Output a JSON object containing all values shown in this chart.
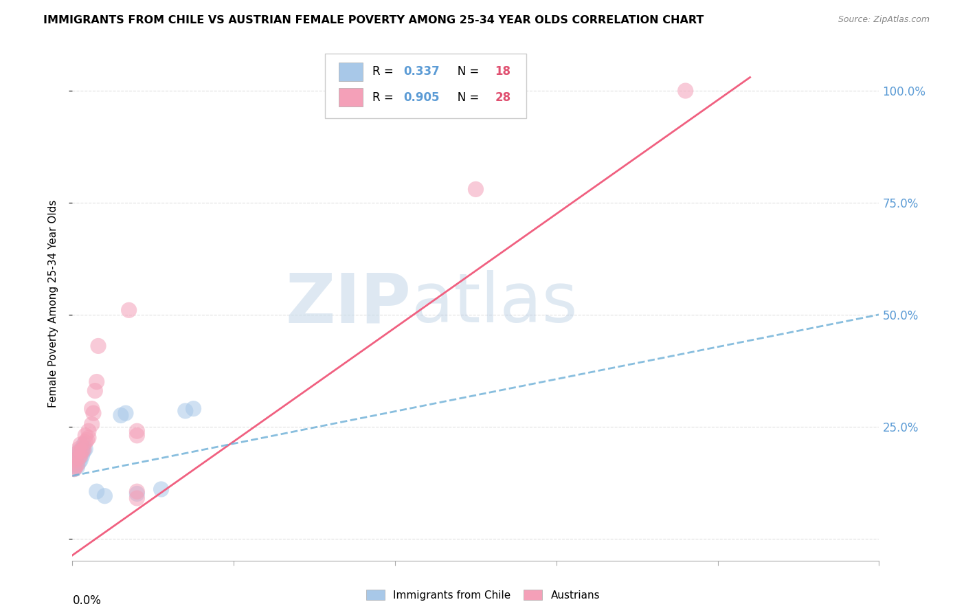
{
  "title": "IMMIGRANTS FROM CHILE VS AUSTRIAN FEMALE POVERTY AMONG 25-34 YEAR OLDS CORRELATION CHART",
  "source": "Source: ZipAtlas.com",
  "ylabel": "Female Poverty Among 25-34 Year Olds",
  "xlim": [
    0,
    0.5
  ],
  "ylim": [
    -0.05,
    1.1
  ],
  "yticks": [
    0.0,
    0.25,
    0.5,
    0.75,
    1.0
  ],
  "ytick_labels": [
    "",
    "25.0%",
    "50.0%",
    "75.0%",
    "100.0%"
  ],
  "legend_label1": "Immigrants from Chile",
  "legend_label2": "Austrians",
  "blue_color": "#a8c8e8",
  "pink_color": "#f4a0b8",
  "blue_line_color": "#6baed6",
  "pink_line_color": "#f06080",
  "r1_color": "#5b9bd5",
  "r2_color": "#5b9bd5",
  "n1_color": "#e05070",
  "n2_color": "#e05070",
  "blue_scatter": [
    [
      0.001,
      0.155
    ],
    [
      0.002,
      0.165
    ],
    [
      0.002,
      0.175
    ],
    [
      0.003,
      0.16
    ],
    [
      0.003,
      0.175
    ],
    [
      0.003,
      0.185
    ],
    [
      0.004,
      0.17
    ],
    [
      0.004,
      0.18
    ],
    [
      0.004,
      0.195
    ],
    [
      0.005,
      0.175
    ],
    [
      0.005,
      0.19
    ],
    [
      0.006,
      0.185
    ],
    [
      0.006,
      0.2
    ],
    [
      0.007,
      0.195
    ],
    [
      0.007,
      0.21
    ],
    [
      0.008,
      0.2
    ],
    [
      0.015,
      0.105
    ],
    [
      0.02,
      0.095
    ],
    [
      0.03,
      0.275
    ],
    [
      0.033,
      0.28
    ],
    [
      0.07,
      0.285
    ],
    [
      0.075,
      0.29
    ],
    [
      0.04,
      0.1
    ],
    [
      0.055,
      0.11
    ]
  ],
  "pink_scatter": [
    [
      0.001,
      0.155
    ],
    [
      0.002,
      0.16
    ],
    [
      0.002,
      0.175
    ],
    [
      0.003,
      0.165
    ],
    [
      0.003,
      0.19
    ],
    [
      0.004,
      0.18
    ],
    [
      0.004,
      0.2
    ],
    [
      0.005,
      0.185
    ],
    [
      0.005,
      0.195
    ],
    [
      0.005,
      0.21
    ],
    [
      0.006,
      0.195
    ],
    [
      0.007,
      0.2
    ],
    [
      0.008,
      0.215
    ],
    [
      0.008,
      0.23
    ],
    [
      0.009,
      0.22
    ],
    [
      0.01,
      0.225
    ],
    [
      0.01,
      0.24
    ],
    [
      0.012,
      0.255
    ],
    [
      0.012,
      0.29
    ],
    [
      0.013,
      0.28
    ],
    [
      0.014,
      0.33
    ],
    [
      0.015,
      0.35
    ],
    [
      0.016,
      0.43
    ],
    [
      0.035,
      0.51
    ],
    [
      0.04,
      0.24
    ],
    [
      0.04,
      0.23
    ],
    [
      0.04,
      0.105
    ],
    [
      0.04,
      0.09
    ],
    [
      0.25,
      0.78
    ],
    [
      0.38,
      1.0
    ]
  ],
  "blue_trend_x": [
    0.0,
    0.5
  ],
  "blue_trend_y": [
    0.14,
    0.5
  ],
  "pink_trend_x": [
    -0.005,
    0.42
  ],
  "pink_trend_y": [
    -0.05,
    1.03
  ],
  "watermark_zip": "ZIP",
  "watermark_atlas": "atlas",
  "background_color": "#ffffff",
  "grid_color": "#d8d8d8"
}
